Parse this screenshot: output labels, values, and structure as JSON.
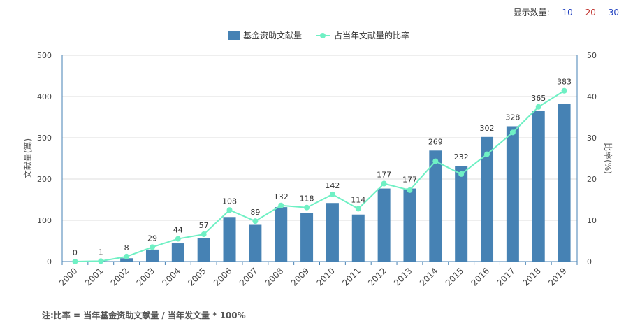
{
  "display_control": {
    "label": "显示数量:",
    "options": [
      {
        "label": "10",
        "color": "#1f3fbf"
      },
      {
        "label": "20",
        "color": "#c0302b"
      },
      {
        "label": "30",
        "color": "#1f3fbf"
      }
    ]
  },
  "note": "注:比率 = 当年基金资助文献量 / 当年发文量 * 100%",
  "chart_data": {
    "type": "bar",
    "categories": [
      "2000",
      "2001",
      "2002",
      "2003",
      "2004",
      "2005",
      "2006",
      "2007",
      "2008",
      "2009",
      "2010",
      "2011",
      "2012",
      "2013",
      "2014",
      "2015",
      "2016",
      "2017",
      "2018",
      "2019"
    ],
    "series": [
      {
        "name": "基金资助文献量",
        "type": "bar",
        "axis": "left",
        "color": "#4682b4",
        "values": [
          0,
          1,
          8,
          29,
          44,
          57,
          108,
          89,
          132,
          118,
          142,
          114,
          177,
          177,
          269,
          232,
          302,
          328,
          365,
          383
        ]
      },
      {
        "name": "占当年文献量的比率",
        "type": "line",
        "axis": "right",
        "color": "#6ff0c4",
        "values": [
          0,
          0.1,
          1.2,
          3.5,
          5.5,
          6.6,
          12.5,
          9.8,
          13.6,
          13.1,
          16.3,
          12.8,
          18.9,
          17.3,
          24.3,
          21.2,
          26.0,
          31.3,
          37.5,
          41.4
        ]
      }
    ],
    "ylabel": "文献量(篇)",
    "ylim": [
      0,
      500
    ],
    "yticks": [
      "0",
      "100",
      "200",
      "300",
      "400",
      "500"
    ],
    "y2label": "比率(%)",
    "y2lim": [
      0,
      50
    ],
    "y2ticks": [
      "0",
      "10",
      "20",
      "30",
      "40",
      "50"
    ],
    "legend_position": "top-center",
    "grid": true
  }
}
